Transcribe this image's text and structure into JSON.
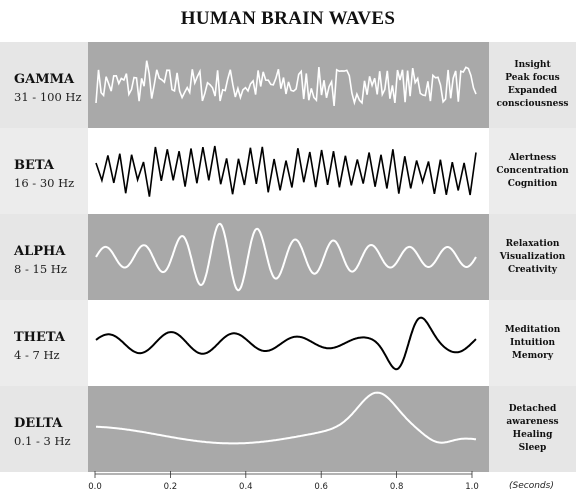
{
  "title": "HUMAN BRAIN WAVES",
  "bands": [
    {
      "name": "GAMMA",
      "freq": "31 - 100 Hz",
      "effects": [
        "Insight",
        "Peak focus",
        "Expanded",
        "consciousness"
      ],
      "shade": "dark",
      "wave_color": "#ffffff"
    },
    {
      "name": "BETA",
      "freq": "16 - 30 Hz",
      "effects": [
        "Alertness",
        "Concentration",
        "Cognition"
      ],
      "shade": "light",
      "wave_color": "#000000"
    },
    {
      "name": "ALPHA",
      "freq": "8 - 15 Hz",
      "effects": [
        "Relaxation",
        "Visualization",
        "Creativity"
      ],
      "shade": "dark",
      "wave_color": "#ffffff"
    },
    {
      "name": "THETA",
      "freq": "4 - 7 Hz",
      "effects": [
        "Meditation",
        "Intuition",
        "Memory"
      ],
      "shade": "light",
      "wave_color": "#000000"
    },
    {
      "name": "DELTA",
      "freq": "0.1 - 3 Hz",
      "effects": [
        "Detached",
        "awareness",
        "Healing",
        "Sleep"
      ],
      "shade": "dark",
      "wave_color": "#ffffff"
    }
  ],
  "axis": {
    "ticks": [
      "0.0",
      "0.2",
      "0.4",
      "0.6",
      "0.8",
      "1.0"
    ],
    "unit": "(Seconds)"
  },
  "colors": {
    "dark_band": "#a9a9a9",
    "side_panel": "#e6e6e6"
  }
}
